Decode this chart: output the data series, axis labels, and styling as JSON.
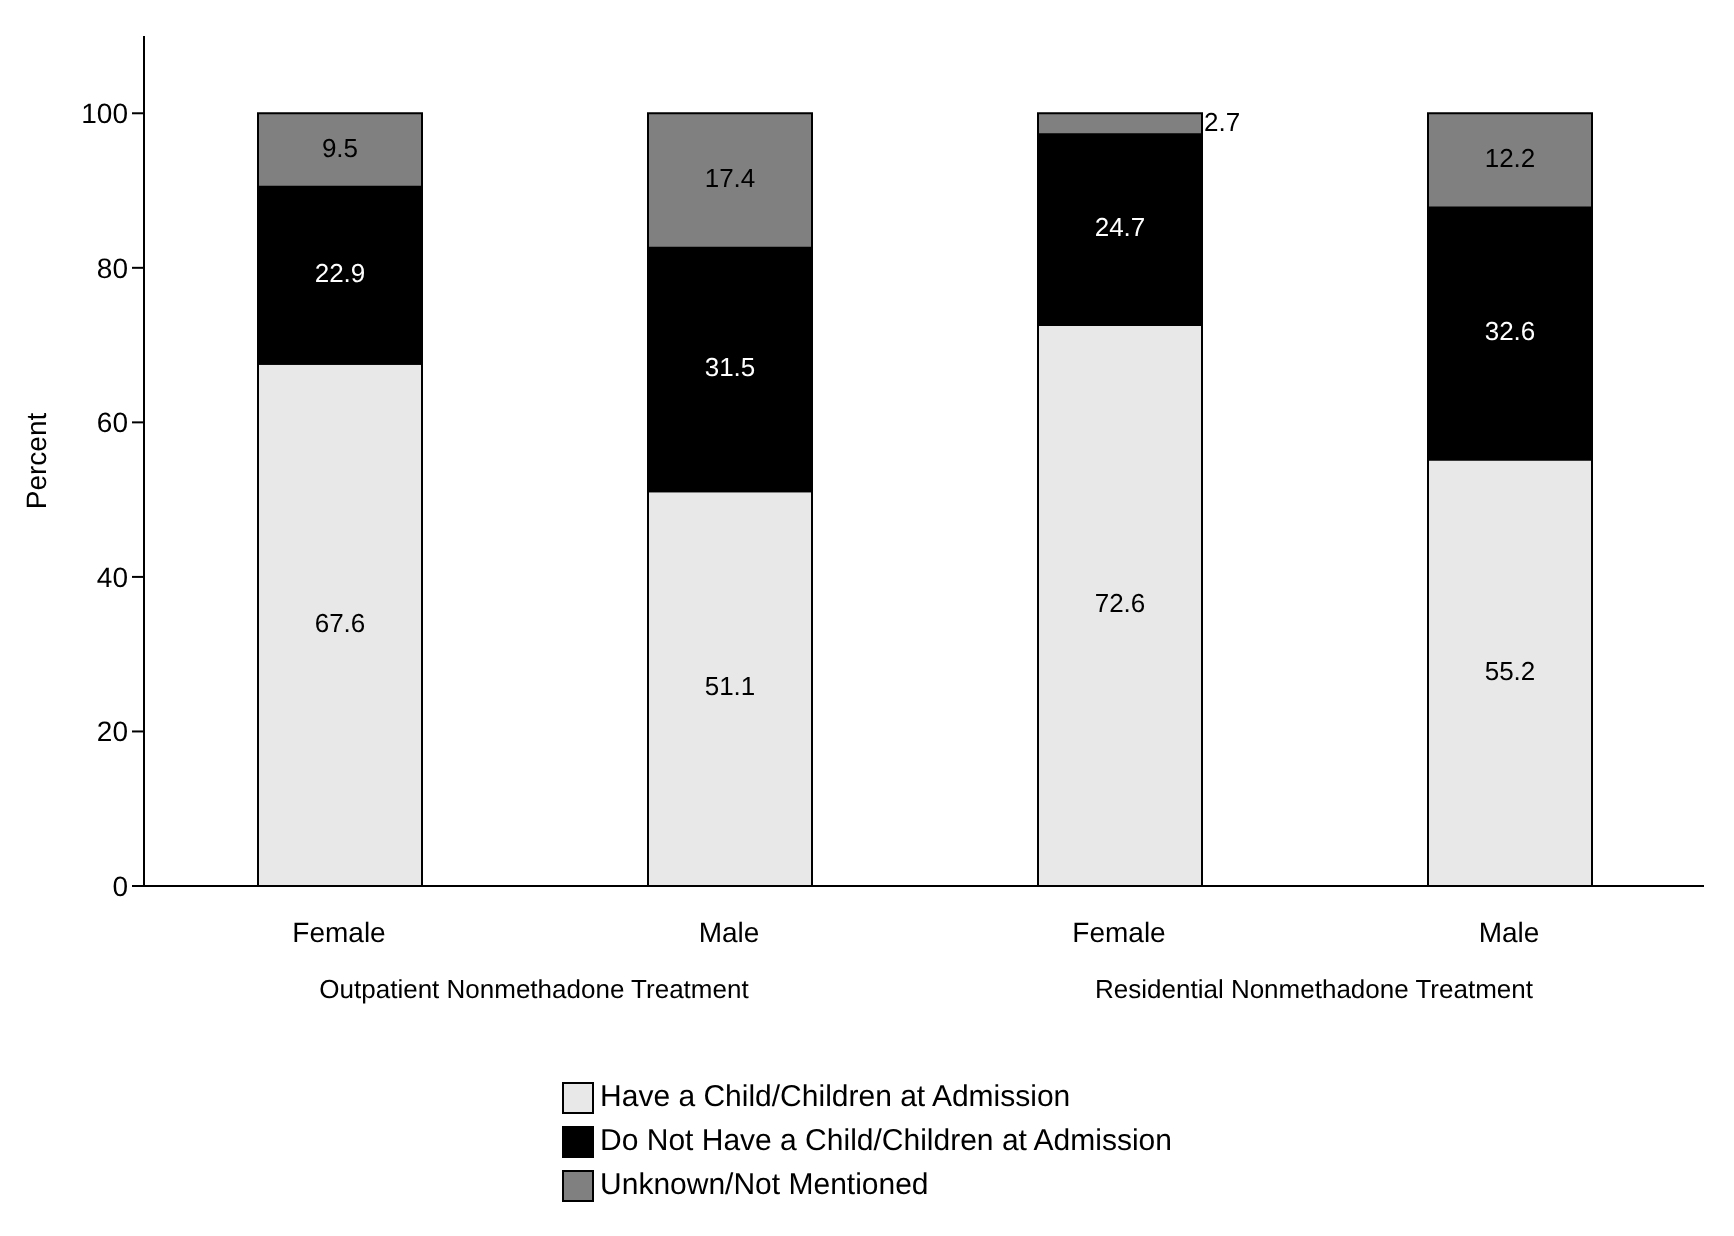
{
  "chart_data": {
    "type": "bar",
    "stacked": true,
    "ylabel": "Percent",
    "categories": [
      "Female",
      "Male",
      "Female",
      "Male"
    ],
    "series": [
      {
        "name": "Have a Child/Children at Admission",
        "color": "#e8e8e8",
        "values": [
          67.6,
          51.1,
          72.6,
          55.2
        ]
      },
      {
        "name": "Do Not Have a Child/Children at Admission",
        "color": "#000000",
        "values": [
          22.9,
          31.5,
          24.7,
          32.6
        ]
      },
      {
        "name": "Unknown/Not Mentioned",
        "color": "#808080",
        "values": [
          9.5,
          17.4,
          2.7,
          12.2
        ]
      }
    ],
    "annotations": [
      "Outpatient Nonmethadone Treatment",
      "Residential Nonmethadone Treatment"
    ],
    "ylim": [
      0,
      110
    ],
    "yticks": [
      0,
      20,
      40,
      60,
      80,
      100
    ],
    "data_labels": true,
    "grid": false,
    "legend": "bottom"
  }
}
